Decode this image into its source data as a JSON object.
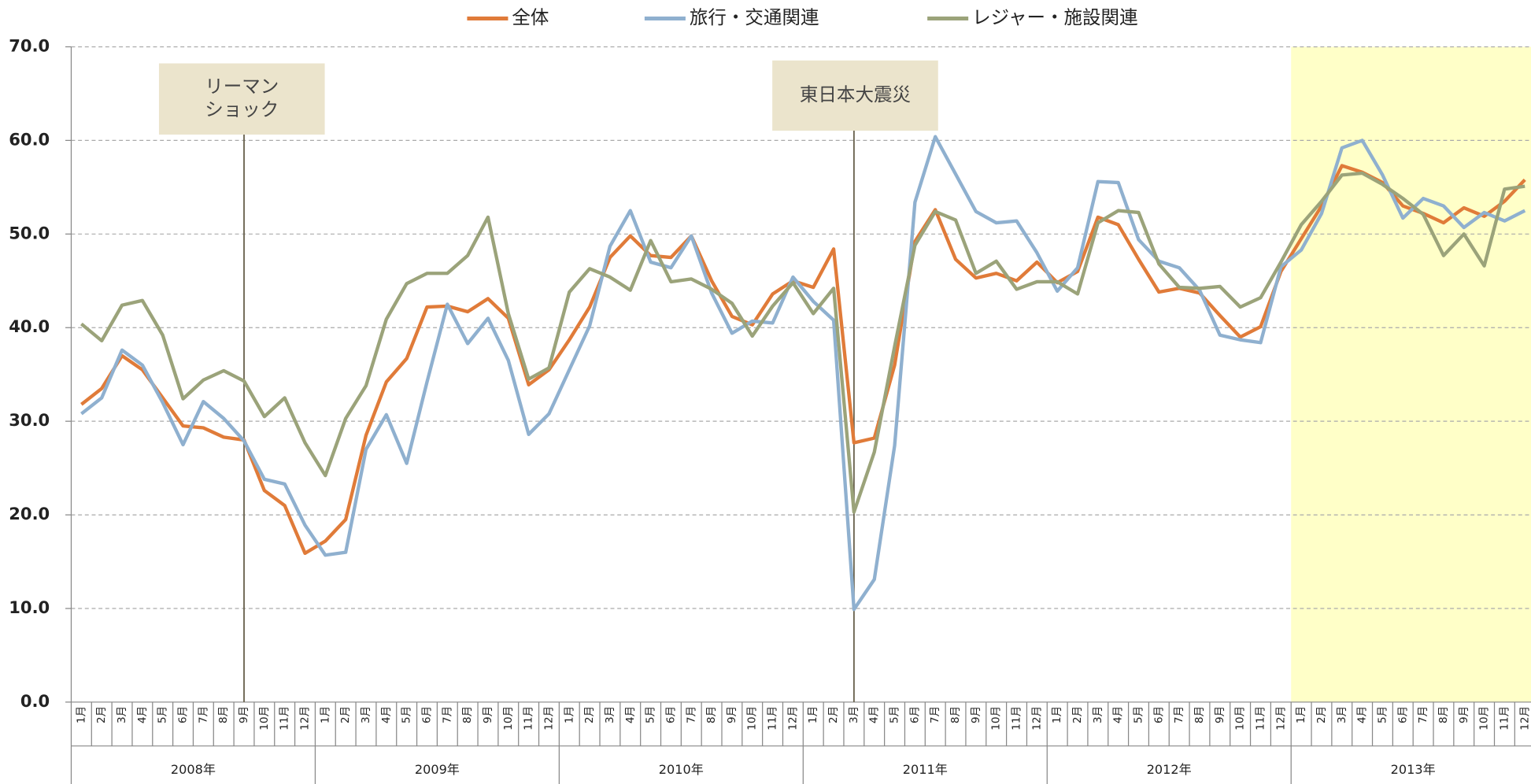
{
  "chart_data": {
    "type": "line",
    "categories": [
      "1月",
      "2月",
      "3月",
      "4月",
      "5月",
      "6月",
      "7月",
      "8月",
      "9月",
      "10月",
      "11月",
      "12月",
      "1月",
      "2月",
      "3月",
      "4月",
      "5月",
      "6月",
      "7月",
      "8月",
      "9月",
      "10月",
      "11月",
      "12月",
      "1月",
      "2月",
      "3月",
      "4月",
      "5月",
      "6月",
      "7月",
      "8月",
      "9月",
      "10月",
      "11月",
      "12月",
      "1月",
      "2月",
      "3月",
      "4月",
      "5月",
      "6月",
      "7月",
      "8月",
      "9月",
      "10月",
      "11月",
      "12月",
      "1月",
      "2月",
      "3月",
      "4月",
      "5月",
      "6月",
      "7月",
      "8月",
      "9月",
      "10月",
      "11月",
      "12月",
      "1月",
      "2月",
      "3月",
      "4月",
      "5月",
      "6月",
      "7月",
      "8月",
      "9月",
      "10月",
      "11月",
      "12月"
    ],
    "year_groups": [
      "2008年",
      "2009年",
      "2010年",
      "2011年",
      "2012年",
      "2013年"
    ],
    "series": [
      {
        "name": "全体",
        "color": "#e07b39",
        "values": [
          31.8,
          33.5,
          37.0,
          35.5,
          32.5,
          29.5,
          29.3,
          28.3,
          28.0,
          22.6,
          21.0,
          15.9,
          17.2,
          19.5,
          28.5,
          34.2,
          36.7,
          42.2,
          42.3,
          41.7,
          43.1,
          41.0,
          33.9,
          35.5,
          38.7,
          42.2,
          47.5,
          49.8,
          47.7,
          47.5,
          49.8,
          45.0,
          41.2,
          40.3,
          43.6,
          45.0,
          44.3,
          48.4,
          27.7,
          28.2,
          36.0,
          49.2,
          52.6,
          47.3,
          45.3,
          45.8,
          45.0,
          47.0,
          44.8,
          46.0,
          51.8,
          51.0,
          47.3,
          43.8,
          44.2,
          43.7,
          41.3,
          39.0,
          40.1,
          46.0,
          49.5,
          53.0,
          57.3,
          56.6,
          55.5,
          53.0,
          52.2,
          51.2,
          52.8,
          51.9,
          53.5,
          55.8
        ]
      },
      {
        "name": "旅行・交通関連",
        "color": "#8fb0cf",
        "values": [
          30.8,
          32.5,
          37.6,
          36.0,
          32.0,
          27.5,
          32.1,
          30.3,
          27.9,
          23.8,
          23.3,
          18.9,
          15.7,
          16.0,
          27.0,
          30.7,
          25.5,
          34.2,
          42.5,
          38.3,
          41.0,
          36.5,
          28.6,
          30.8,
          35.5,
          40.2,
          48.7,
          52.5,
          47.0,
          46.4,
          49.8,
          43.7,
          39.4,
          40.7,
          40.5,
          45.4,
          42.8,
          40.8,
          9.9,
          13.1,
          27.4,
          53.4,
          60.4,
          56.4,
          52.4,
          51.2,
          51.4,
          48.0,
          43.9,
          46.4,
          55.6,
          55.5,
          49.4,
          47.1,
          46.4,
          44.0,
          39.2,
          38.7,
          38.4,
          46.5,
          48.3,
          52.2,
          59.2,
          60.0,
          56.3,
          51.7,
          53.8,
          53.0,
          50.7,
          52.3,
          51.4,
          52.5
        ]
      },
      {
        "name": "レジャー・施設関連",
        "color": "#9ba37a",
        "values": [
          40.4,
          38.6,
          42.4,
          42.9,
          39.2,
          32.4,
          34.4,
          35.4,
          34.3,
          30.5,
          32.5,
          27.7,
          24.2,
          30.3,
          33.8,
          40.9,
          44.7,
          45.8,
          45.8,
          47.7,
          51.8,
          41.5,
          34.5,
          35.7,
          43.8,
          46.3,
          45.4,
          44.0,
          49.3,
          44.9,
          45.2,
          44.1,
          42.6,
          39.1,
          42.3,
          44.8,
          41.5,
          44.2,
          20.3,
          26.7,
          38.0,
          48.8,
          52.4,
          51.5,
          45.8,
          47.1,
          44.1,
          44.9,
          44.9,
          43.6,
          51.2,
          52.5,
          52.3,
          46.8,
          44.3,
          44.2,
          44.4,
          42.2,
          43.2,
          47.0,
          51.0,
          53.5,
          56.3,
          56.5,
          55.3,
          53.8,
          52.1,
          47.7,
          50.0,
          46.6,
          54.8,
          55.1
        ]
      }
    ],
    "ylim": [
      0,
      70
    ],
    "yticks": [
      {
        "value": 0,
        "label": "0.0"
      },
      {
        "value": 10,
        "label": "10.0"
      },
      {
        "value": 20,
        "label": "20.0"
      },
      {
        "value": 30,
        "label": "30.0"
      },
      {
        "value": 40,
        "label": "40.0"
      },
      {
        "value": 50,
        "label": "50.0"
      },
      {
        "value": 60,
        "label": "60.0"
      },
      {
        "value": 70,
        "label": "70.0"
      }
    ],
    "grid": true,
    "legend": "top",
    "annotations": [
      {
        "lines": [
          "リーマン",
          "ショック"
        ]
      },
      {
        "lines": [
          "東日本大震災"
        ]
      }
    ]
  }
}
